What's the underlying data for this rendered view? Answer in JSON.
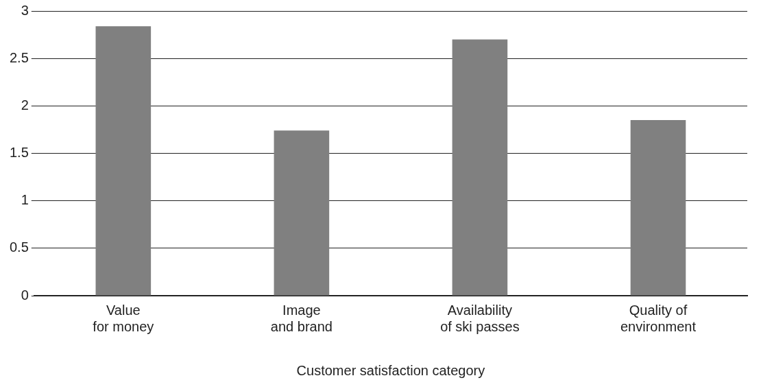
{
  "chart_data": {
    "type": "bar",
    "xlabel": "Customer satisfaction category",
    "categories": [
      "Value for money",
      "Image and brand",
      "Availability of ski passes",
      "Quality of environment"
    ],
    "values": [
      2.84,
      1.74,
      2.7,
      1.85
    ],
    "color": "#808080",
    "ylim": [
      0,
      3
    ],
    "yticks": [
      0,
      0.5,
      1,
      1.5,
      2,
      2.5,
      3
    ],
    "grid": "y",
    "legend": false
  }
}
